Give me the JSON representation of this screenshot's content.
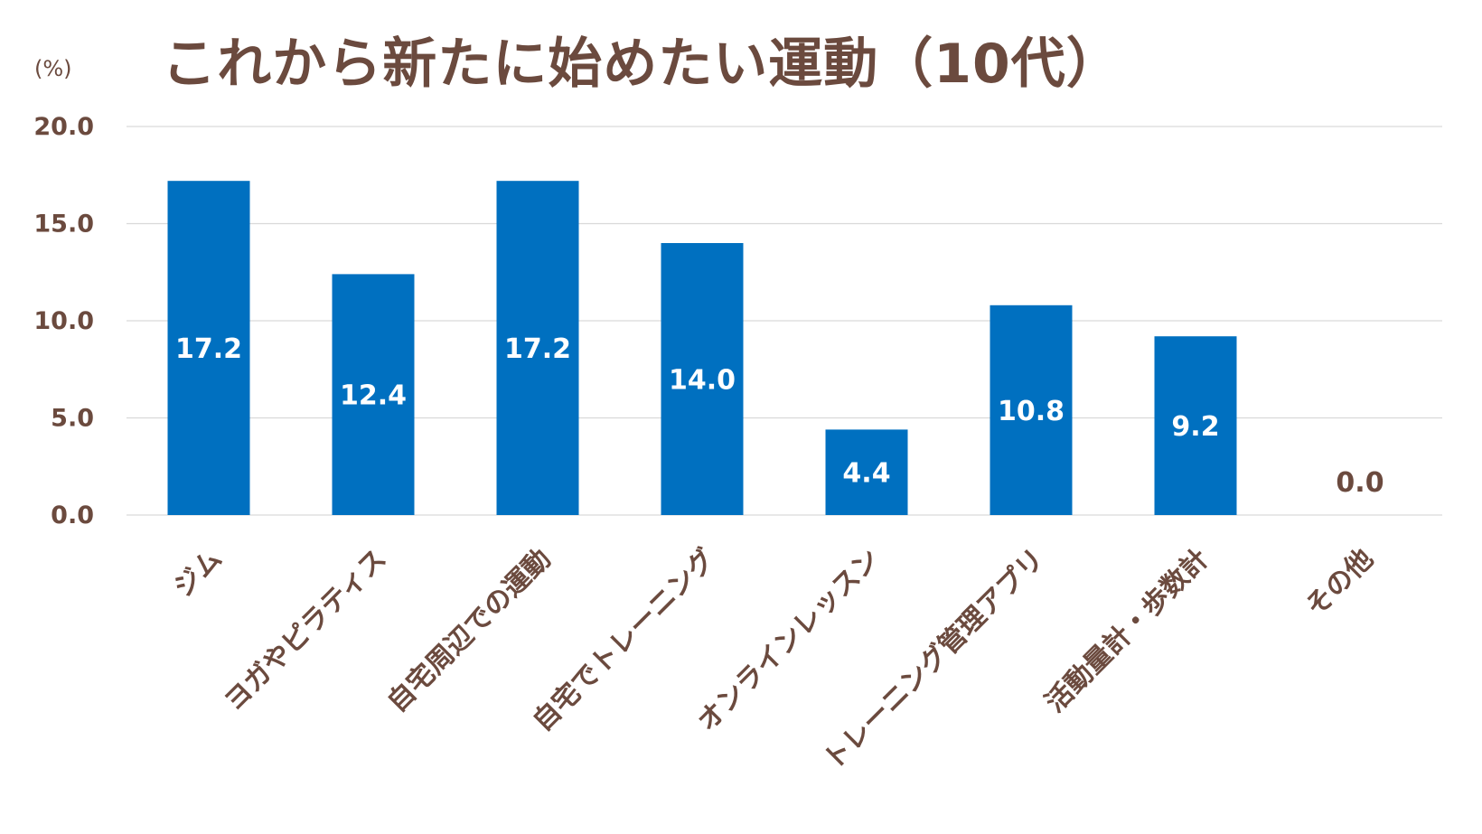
{
  "chart_data": {
    "type": "bar",
    "title": "これから新たに始めたい運動（10代）",
    "ylabel": "(%)",
    "categories": [
      "ジム",
      "ヨガやピラティス",
      "自宅周辺での運動",
      "自宅でトレーニング",
      "オンラインレッスン",
      "トレーニング管理アプリ",
      "活動量計・歩数計",
      "その他"
    ],
    "values": [
      17.2,
      12.4,
      17.2,
      14.0,
      4.4,
      10.8,
      9.2,
      0.0
    ],
    "value_labels": [
      "17.2",
      "12.4",
      "17.2",
      "14.0",
      "4.4",
      "10.8",
      "9.2",
      "0.0"
    ],
    "ylim": [
      0,
      20
    ],
    "yticks": [
      "0.0",
      "5.0",
      "10.0",
      "15.0",
      "20.0"
    ],
    "ytick_values": [
      0,
      5,
      10,
      15,
      20
    ],
    "grid": true,
    "legend": "none",
    "colors": {
      "bar": "#0070c0",
      "text": "#6b4a3e",
      "bar_label": "#ffffff",
      "grid": "#d9d9d9"
    }
  }
}
